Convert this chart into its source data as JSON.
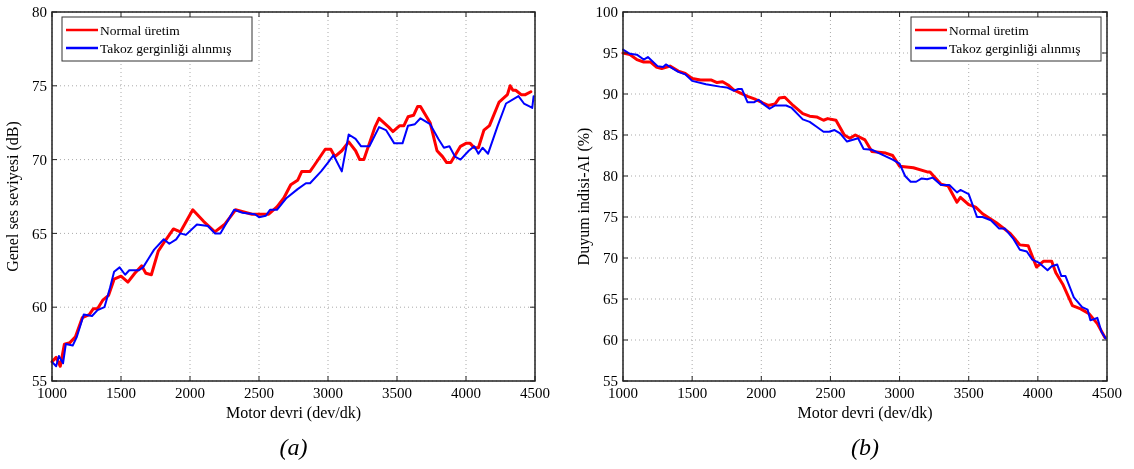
{
  "chart_data": [
    {
      "type": "line",
      "xlabel": "Motor devri (dev/dk)",
      "ylabel": "Genel ses seviyesi (dB)",
      "annotations": [
        "(a)"
      ],
      "xlim": [
        1000,
        4500
      ],
      "xticks": [
        1000,
        1500,
        2000,
        2500,
        3000,
        3500,
        4000,
        4500
      ],
      "ylim": [
        55,
        80
      ],
      "yticks": [
        55,
        60,
        65,
        70,
        75,
        80
      ],
      "grid": true,
      "legend": "top left",
      "line_style": "solid",
      "series": [
        {
          "name": "Normal üretim",
          "color": "#ff0000",
          "x": [
            1000,
            1030,
            1060,
            1090,
            1130,
            1170,
            1220,
            1270,
            1300,
            1330,
            1370,
            1410,
            1450,
            1500,
            1550,
            1600,
            1650,
            1680,
            1720,
            1770,
            1820,
            1880,
            1930,
            2020,
            2100,
            2180,
            2250,
            2330,
            2370,
            2450,
            2570,
            2630,
            2680,
            2730,
            2780,
            2810,
            2870,
            2900,
            2980,
            3020,
            3050,
            3100,
            3150,
            3200,
            3230,
            3260,
            3340,
            3370,
            3440,
            3470,
            3520,
            3550,
            3580,
            3620,
            3650,
            3670,
            3740,
            3790,
            3830,
            3860,
            3890,
            3960,
            4000,
            4030,
            4060,
            4090,
            4130,
            4170,
            4240,
            4300,
            4320,
            4340,
            4360,
            4400,
            4430,
            4470
          ],
          "values": [
            56.3,
            56.6,
            56.0,
            57.5,
            57.6,
            58.0,
            59.3,
            59.5,
            59.9,
            59.9,
            60.5,
            60.8,
            61.9,
            62.1,
            61.7,
            62.3,
            62.8,
            62.3,
            62.2,
            63.8,
            64.5,
            65.3,
            65.1,
            66.6,
            65.8,
            65.1,
            65.6,
            66.6,
            66.5,
            66.3,
            66.3,
            66.8,
            67.4,
            68.3,
            68.6,
            69.2,
            69.2,
            69.6,
            70.7,
            70.7,
            70.2,
            70.6,
            71.2,
            70.6,
            70.0,
            70.0,
            72.2,
            72.8,
            72.2,
            71.9,
            72.3,
            72.3,
            72.9,
            73.0,
            73.6,
            73.6,
            72.5,
            70.6,
            70.2,
            69.8,
            69.8,
            70.9,
            71.1,
            71.1,
            70.8,
            70.8,
            72.0,
            72.3,
            73.9,
            74.4,
            75.0,
            74.7,
            74.7,
            74.4,
            74.4,
            74.6
          ]
        },
        {
          "name": "Takoz gerginliği alınmış",
          "color": "#0000ff",
          "x": [
            1000,
            1030,
            1050,
            1080,
            1100,
            1150,
            1180,
            1230,
            1290,
            1330,
            1380,
            1420,
            1450,
            1490,
            1530,
            1560,
            1630,
            1660,
            1700,
            1740,
            1810,
            1850,
            1900,
            1930,
            1970,
            2050,
            2130,
            2180,
            2220,
            2320,
            2380,
            2470,
            2500,
            2550,
            2580,
            2630,
            2700,
            2780,
            2840,
            2870,
            2950,
            3000,
            3040,
            3100,
            3150,
            3200,
            3240,
            3300,
            3370,
            3420,
            3480,
            3540,
            3580,
            3630,
            3670,
            3740,
            3800,
            3840,
            3880,
            3920,
            3960,
            4020,
            4060,
            4090,
            4120,
            4160,
            4230,
            4290,
            4380,
            4420,
            4460,
            4480,
            4490
          ],
          "values": [
            56.3,
            56.0,
            56.7,
            56.2,
            57.5,
            57.4,
            58.0,
            59.5,
            59.4,
            59.8,
            60.0,
            61.3,
            62.4,
            62.7,
            62.2,
            62.5,
            62.5,
            62.7,
            63.3,
            63.9,
            64.6,
            64.3,
            64.6,
            65.0,
            64.9,
            65.6,
            65.5,
            65.0,
            65.0,
            66.6,
            66.4,
            66.3,
            66.1,
            66.2,
            66.6,
            66.6,
            67.4,
            68.0,
            68.4,
            68.4,
            69.2,
            69.8,
            70.3,
            69.2,
            71.7,
            71.4,
            70.9,
            70.9,
            72.2,
            72.0,
            71.1,
            71.1,
            72.3,
            72.4,
            72.8,
            72.4,
            71.4,
            70.8,
            70.9,
            70.2,
            70.0,
            70.6,
            70.9,
            70.4,
            70.8,
            70.4,
            72.3,
            73.8,
            74.3,
            73.8,
            73.6,
            73.5,
            74.3
          ]
        }
      ]
    },
    {
      "type": "line",
      "xlabel": "Motor devri (dev/dk)",
      "ylabel": "Duyum indisi-AI (%)",
      "annotations": [
        "(b)"
      ],
      "xlim": [
        1000,
        4500
      ],
      "xticks": [
        1000,
        1500,
        2000,
        2500,
        3000,
        3500,
        4000,
        4500
      ],
      "ylim": [
        55,
        100
      ],
      "yticks": [
        55,
        60,
        65,
        70,
        75,
        80,
        85,
        90,
        95,
        100
      ],
      "grid": true,
      "legend": "top right",
      "line_style": "solid",
      "series": [
        {
          "name": "Normal üretim",
          "color": "#ff0000",
          "x": [
            1000,
            1050,
            1100,
            1150,
            1200,
            1240,
            1280,
            1340,
            1400,
            1450,
            1500,
            1560,
            1640,
            1680,
            1720,
            1760,
            1800,
            1850,
            1900,
            1950,
            2000,
            2050,
            2100,
            2130,
            2170,
            2230,
            2300,
            2350,
            2400,
            2450,
            2480,
            2540,
            2600,
            2640,
            2680,
            2750,
            2800,
            2900,
            2950,
            3000,
            3100,
            3200,
            3220,
            3300,
            3350,
            3415,
            3440,
            3500,
            3550,
            3600,
            3700,
            3800,
            3870,
            3930,
            3990,
            4040,
            4100,
            4130,
            4180,
            4250,
            4310,
            4370,
            4430,
            4485
          ],
          "values": [
            95.0,
            94.8,
            94.2,
            93.9,
            93.9,
            93.3,
            93.1,
            93.4,
            92.8,
            92.5,
            91.9,
            91.7,
            91.7,
            91.4,
            91.5,
            91.1,
            90.5,
            90.1,
            89.7,
            89.4,
            89.0,
            88.6,
            88.8,
            89.5,
            89.6,
            88.6,
            87.6,
            87.3,
            87.2,
            86.8,
            87.0,
            86.8,
            85.0,
            84.6,
            85.0,
            84.4,
            83.0,
            82.8,
            82.5,
            81.2,
            81.0,
            80.5,
            80.5,
            79.0,
            78.8,
            76.8,
            77.4,
            76.5,
            76.2,
            75.4,
            74.3,
            73.0,
            71.6,
            71.5,
            68.9,
            69.6,
            69.6,
            68.2,
            66.8,
            64.2,
            63.8,
            63.2,
            62.0,
            60.3
          ]
        },
        {
          "name": "Takoz gerginliği alınmış",
          "color": "#0000ff",
          "x": [
            1000,
            1050,
            1100,
            1150,
            1180,
            1250,
            1290,
            1310,
            1400,
            1450,
            1500,
            1600,
            1700,
            1750,
            1800,
            1830,
            1860,
            1900,
            1950,
            1980,
            2020,
            2060,
            2100,
            2180,
            2220,
            2300,
            2350,
            2400,
            2450,
            2490,
            2530,
            2570,
            2620,
            2700,
            2740,
            2800,
            2900,
            2950,
            3000,
            3040,
            3080,
            3120,
            3160,
            3200,
            3240,
            3300,
            3360,
            3415,
            3440,
            3500,
            3560,
            3600,
            3660,
            3720,
            3760,
            3820,
            3870,
            3920,
            3960,
            4010,
            4070,
            4100,
            4140,
            4170,
            4200,
            4260,
            4320,
            4360,
            4380,
            4430,
            4460,
            4490
          ],
          "values": [
            95.4,
            94.9,
            94.8,
            94.2,
            94.5,
            93.4,
            93.3,
            93.6,
            92.7,
            92.4,
            91.6,
            91.2,
            90.9,
            90.8,
            90.4,
            90.6,
            90.6,
            89.0,
            89.0,
            89.3,
            88.7,
            88.2,
            88.6,
            88.6,
            88.3,
            86.9,
            86.6,
            86.0,
            85.4,
            85.4,
            85.6,
            85.2,
            84.2,
            84.6,
            83.3,
            83.2,
            82.4,
            82.0,
            81.5,
            80.0,
            79.3,
            79.3,
            79.7,
            79.6,
            79.8,
            78.9,
            78.9,
            78.0,
            78.3,
            77.8,
            75.0,
            75.0,
            74.6,
            73.6,
            73.6,
            72.4,
            71.0,
            70.8,
            69.8,
            69.4,
            68.5,
            69.0,
            69.2,
            67.8,
            67.8,
            65.2,
            64.0,
            63.7,
            62.4,
            62.7,
            61.0,
            60.2
          ]
        }
      ]
    }
  ]
}
